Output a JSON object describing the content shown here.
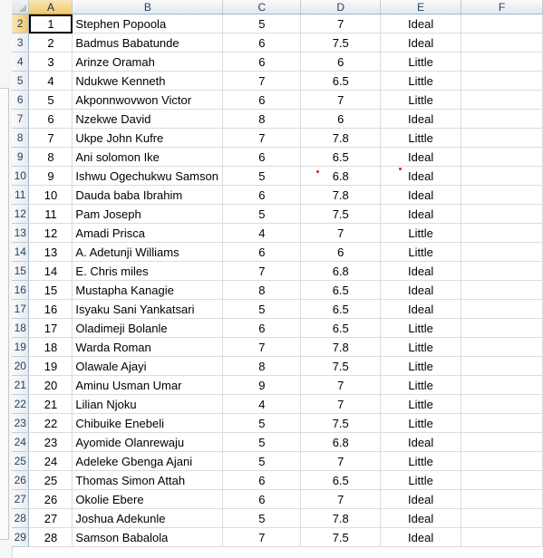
{
  "columns": [
    "A",
    "B",
    "C",
    "D",
    "E",
    "F"
  ],
  "selected_column": "A",
  "selected_row": "2",
  "rows": [
    {
      "row": "2",
      "a": "1",
      "b": "Stephen Popoola",
      "c": "5",
      "d": "7",
      "e": "Ideal"
    },
    {
      "row": "3",
      "a": "2",
      "b": "Badmus Babatunde",
      "c": "6",
      "d": "7.5",
      "e": "Ideal"
    },
    {
      "row": "4",
      "a": "3",
      "b": "Arinze Oramah",
      "c": "6",
      "d": "6",
      "e": "Little"
    },
    {
      "row": "5",
      "a": "4",
      "b": "Ndukwe Kenneth",
      "c": "7",
      "d": "6.5",
      "e": "Little"
    },
    {
      "row": "6",
      "a": "5",
      "b": "Akponnwovwon Victor",
      "c": "6",
      "d": "7",
      "e": "Little"
    },
    {
      "row": "7",
      "a": "6",
      "b": "Nzekwe David",
      "c": "8",
      "d": "6",
      "e": "Ideal"
    },
    {
      "row": "8",
      "a": "7",
      "b": "Ukpe John Kufre",
      "c": "7",
      "d": "7.8",
      "e": "Little"
    },
    {
      "row": "9",
      "a": "8",
      "b": "Ani solomon Ike",
      "c": "6",
      "d": "6.5",
      "e": "Ideal"
    },
    {
      "row": "10",
      "a": "9",
      "b": "Ishwu Ogechukwu Samson",
      "c": "5",
      "d": "6.8",
      "e": "Ideal"
    },
    {
      "row": "11",
      "a": "10",
      "b": "Dauda baba Ibrahim",
      "c": "6",
      "d": "7.8",
      "e": "Ideal"
    },
    {
      "row": "12",
      "a": "11",
      "b": "Pam Joseph",
      "c": "5",
      "d": "7.5",
      "e": "Ideal"
    },
    {
      "row": "13",
      "a": "12",
      "b": "Amadi Prisca",
      "c": "4",
      "d": "7",
      "e": "Little"
    },
    {
      "row": "14",
      "a": "13",
      "b": "A. Adetunji Williams",
      "c": "6",
      "d": "6",
      "e": "Little"
    },
    {
      "row": "15",
      "a": "14",
      "b": "E. Chris miles",
      "c": "7",
      "d": "6.8",
      "e": "Ideal"
    },
    {
      "row": "16",
      "a": "15",
      "b": "Mustapha Kanagie",
      "c": "8",
      "d": "6.5",
      "e": "Ideal"
    },
    {
      "row": "17",
      "a": "16",
      "b": "Isyaku Sani Yankatsari",
      "c": "5",
      "d": "6.5",
      "e": "Ideal"
    },
    {
      "row": "18",
      "a": "17",
      "b": "Oladimeji Bolanle",
      "c": "6",
      "d": "6.5",
      "e": "Little"
    },
    {
      "row": "19",
      "a": "18",
      "b": "Warda Roman",
      "c": "7",
      "d": "7.8",
      "e": "Little"
    },
    {
      "row": "20",
      "a": "19",
      "b": "Olawale Ajayi",
      "c": "8",
      "d": "7.5",
      "e": "Little"
    },
    {
      "row": "21",
      "a": "20",
      "b": "Aminu Usman Umar",
      "c": "9",
      "d": "7",
      "e": "Little"
    },
    {
      "row": "22",
      "a": "21",
      "b": "Lilian Njoku",
      "c": "4",
      "d": "7",
      "e": "Little"
    },
    {
      "row": "23",
      "a": "22",
      "b": "Chibuike Enebeli",
      "c": "5",
      "d": "7.5",
      "e": "Little"
    },
    {
      "row": "24",
      "a": "23",
      "b": "Ayomide Olanrewaju",
      "c": "5",
      "d": "6.8",
      "e": "Ideal"
    },
    {
      "row": "25",
      "a": "24",
      "b": "Adeleke Gbenga Ajani",
      "c": "5",
      "d": "7",
      "e": "Little"
    },
    {
      "row": "26",
      "a": "25",
      "b": "Thomas Simon Attah",
      "c": "6",
      "d": "6.5",
      "e": "Little"
    },
    {
      "row": "27",
      "a": "26",
      "b": "Okolie Ebere",
      "c": "6",
      "d": "7",
      "e": "Ideal"
    },
    {
      "row": "28",
      "a": "27",
      "b": "Joshua Adekunle",
      "c": "5",
      "d": "7.8",
      "e": "Ideal"
    },
    {
      "row": "29",
      "a": "28",
      "b": "Samson Babalola",
      "c": "7",
      "d": "7.5",
      "e": "Ideal"
    }
  ],
  "colors": {
    "header_selected": "#f1c86a",
    "gridline": "#dadcdd",
    "marker_dot": "#e11c1c"
  }
}
